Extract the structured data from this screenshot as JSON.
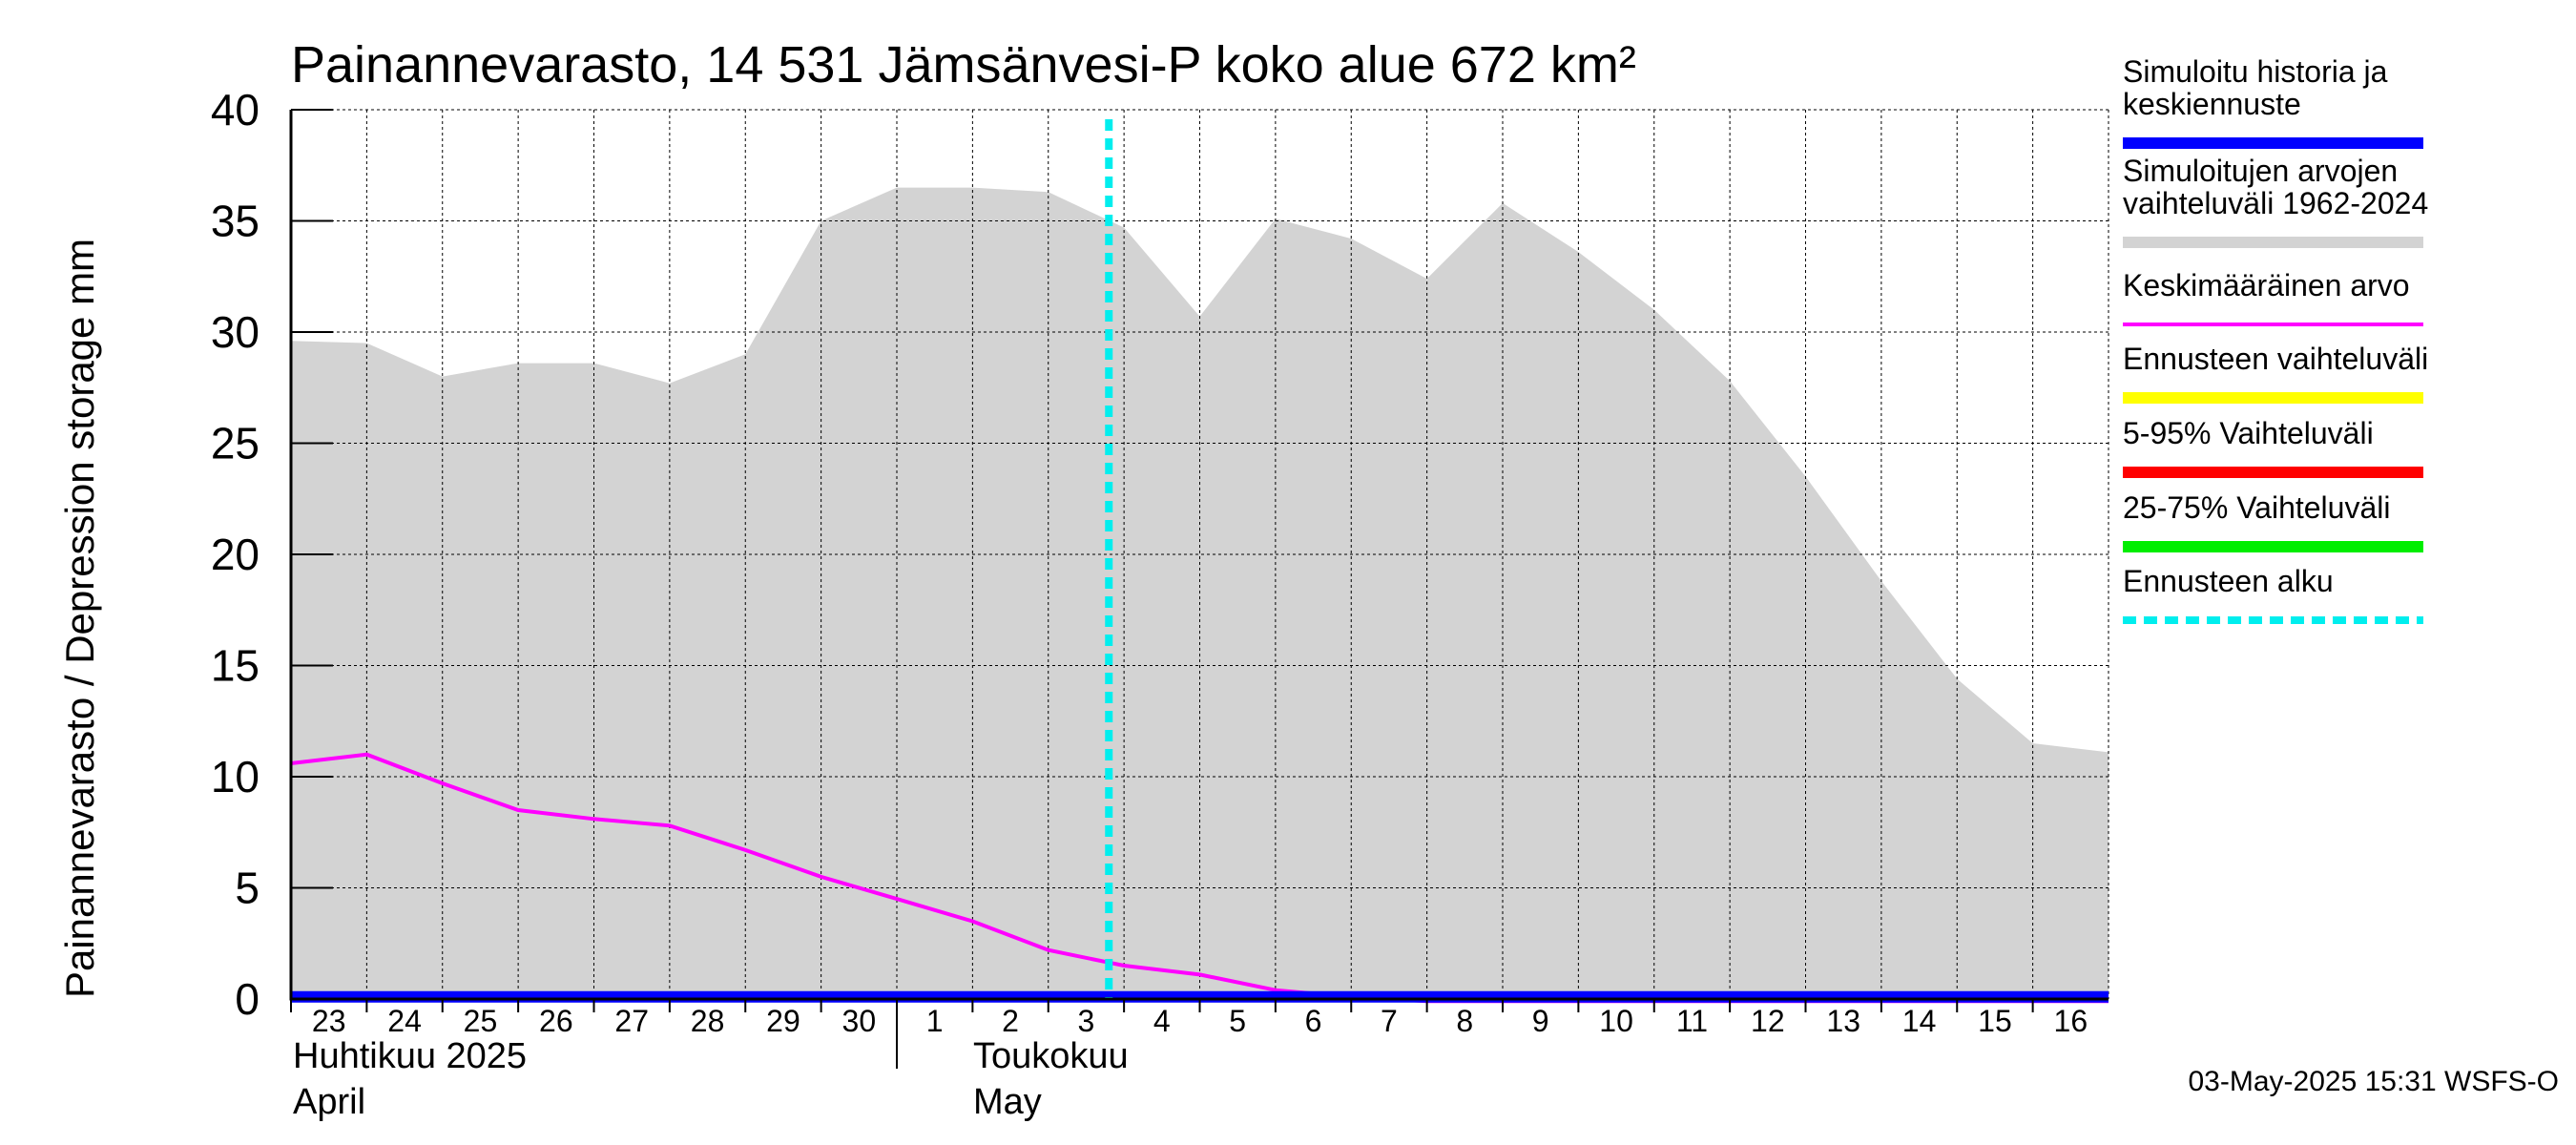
{
  "chart_data": {
    "type": "area",
    "title": "Painannevarasto, 14 531 Jämsänvesi-P koko alue 672 km²",
    "ylabel": "Painannevarasto / Depression storage    mm",
    "ylim": [
      0,
      40
    ],
    "yticks": [
      "0",
      "5",
      "10",
      "15",
      "20",
      "25",
      "30",
      "35",
      "40"
    ],
    "grid": true,
    "legend_position": "right",
    "x_days": [
      "23",
      "24",
      "25",
      "26",
      "27",
      "28",
      "29",
      "30",
      "1",
      "2",
      "3",
      "4",
      "5",
      "6",
      "7",
      "8",
      "9",
      "10",
      "11",
      "12",
      "13",
      "14",
      "15",
      "16"
    ],
    "months": [
      {
        "line1": "Huhtikuu  2025",
        "line2": "April",
        "start_day_index": 0
      },
      {
        "line1": "Toukokuu",
        "line2": "May",
        "start_day_index": 8
      }
    ],
    "x_range_days": [
      0,
      24
    ],
    "forecast_start_day": 10.8,
    "series": [
      {
        "name": "Simuloitujen arvojen vaihteluväli 1962-2024",
        "kind": "band",
        "color": "#d3d3d3",
        "x": [
          0,
          1,
          2,
          3,
          4,
          5,
          6,
          7,
          8,
          9,
          10,
          11,
          12,
          13,
          14,
          15,
          16,
          17,
          18,
          19,
          20,
          21,
          22,
          23,
          24
        ],
        "upper": [
          29.6,
          29.5,
          28.0,
          28.6,
          28.6,
          27.7,
          29.0,
          35.0,
          36.5,
          36.5,
          36.3,
          34.7,
          30.7,
          35.1,
          34.2,
          32.4,
          35.8,
          33.6,
          31.0,
          27.8,
          23.5,
          18.8,
          14.4,
          11.5,
          11.1
        ],
        "lower": [
          0,
          0,
          0,
          0,
          0,
          0,
          0,
          0,
          0,
          0,
          0,
          0,
          0,
          0,
          0,
          0,
          0,
          0,
          0,
          0,
          0,
          0,
          0,
          0,
          0
        ]
      },
      {
        "name": "Keskimääräinen arvo",
        "kind": "line",
        "color": "#ff00ff",
        "x": [
          0,
          1,
          2,
          3,
          4,
          5,
          6,
          7,
          8,
          9,
          10,
          11,
          12,
          13,
          14,
          15,
          16,
          17,
          18,
          19,
          20,
          21,
          22,
          23,
          24
        ],
        "y": [
          10.6,
          11.0,
          9.7,
          8.5,
          8.1,
          7.8,
          6.7,
          5.5,
          4.5,
          3.5,
          2.2,
          1.5,
          1.1,
          0.4,
          0.1,
          -0.1,
          -0.1,
          -0.1,
          -0.1,
          -0.1,
          -0.1,
          -0.1,
          -0.1,
          -0.1,
          -0.1
        ]
      },
      {
        "name": "Simuloitu historia ja keskiennuste",
        "kind": "line",
        "color": "#0000ff",
        "x": [
          0,
          24
        ],
        "y": [
          0.1,
          0.1
        ]
      }
    ]
  },
  "legend": [
    {
      "lines": [
        "Simuloitu historia ja",
        "keskiennuste"
      ],
      "color": "#0000ff",
      "style": "solid"
    },
    {
      "lines": [
        "Simuloitujen arvojen",
        "vaihteluväli 1962-2024"
      ],
      "color": "#d3d3d3",
      "style": "solid"
    },
    {
      "lines": [
        "Keskimääräinen arvo"
      ],
      "color": "#ff00ff",
      "style": "thin"
    },
    {
      "lines": [
        "Ennusteen vaihteluväli"
      ],
      "color": "#ffff00",
      "style": "solid"
    },
    {
      "lines": [
        "5-95% Vaihteluväli"
      ],
      "color": "#ff0000",
      "style": "solid"
    },
    {
      "lines": [
        "25-75% Vaihteluväli"
      ],
      "color": "#00ee00",
      "style": "solid"
    },
    {
      "lines": [
        "Ennusteen alku"
      ],
      "color": "#00eeee",
      "style": "dashed"
    }
  ],
  "footer": "03-May-2025 15:31 WSFS-O"
}
